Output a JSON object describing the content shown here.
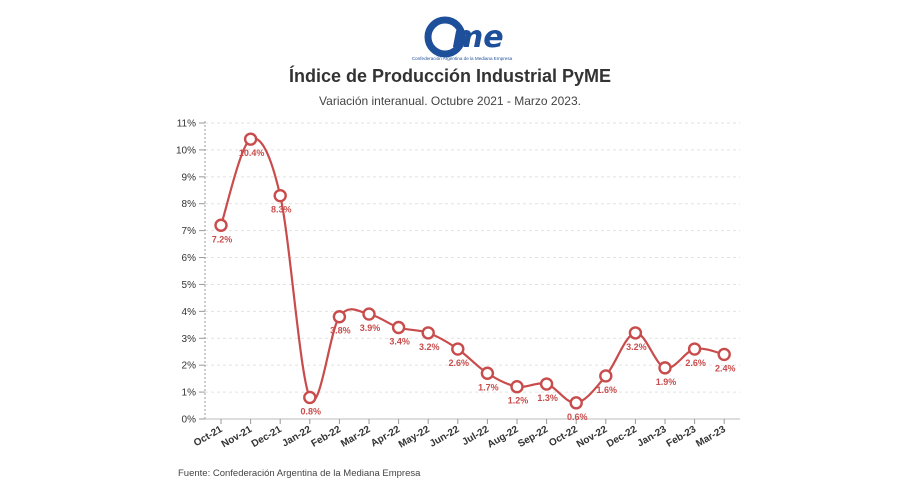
{
  "brand": {
    "logo_text": "came",
    "logo_subtext": "Confederación Argentina de la Mediana Empresa",
    "logo_color": "#1e4f9a"
  },
  "header": {
    "title": "Índice de Producción Industrial PyME",
    "subtitle": "Variación interanual. Octubre 2021 - Marzo 2023."
  },
  "footer": {
    "source": "Fuente: Confederación Argentina de la Mediana Empresa"
  },
  "chart_data": {
    "type": "line",
    "title": "Índice de Producción Industrial PyME",
    "subtitle": "Variación interanual. Octubre 2021 - Marzo 2023.",
    "categories": [
      "Oct-21",
      "Nov-21",
      "Dec-21",
      "Jan-22",
      "Feb-22",
      "Mar-22",
      "Apr-22",
      "May-22",
      "Jun-22",
      "Jul-22",
      "Aug-22",
      "Sep-22",
      "Oct-22",
      "Nov-22",
      "Dec-22",
      "Jan-23",
      "Feb-23",
      "Mar-23"
    ],
    "series": [
      {
        "values": [
          7.2,
          10.4,
          8.3,
          0.8,
          3.8,
          3.9,
          3.4,
          3.2,
          2.6,
          1.7,
          1.2,
          1.3,
          0.6,
          1.6,
          3.2,
          1.9,
          2.6,
          2.4
        ],
        "labels": [
          "7.2%",
          "10.4%",
          "8.3%",
          "0.8%",
          "3.8%",
          "3.9%",
          "3.4%",
          "3.2%",
          "2.6%",
          "1.7%",
          "1.2%",
          "1.3%",
          "0.6%",
          "1.6%",
          "3.2%",
          "1.9%",
          "2.6%",
          "2.4%"
        ]
      }
    ],
    "y_ticks": [
      "0%",
      "1%",
      "2%",
      "3%",
      "4%",
      "5%",
      "6%",
      "7%",
      "8%",
      "9%",
      "10%",
      "11%"
    ],
    "ylim": [
      0,
      11
    ],
    "grid": "horizontal dashed",
    "legend": "none",
    "line_color": "#c94c4c",
    "grid_color": "#e2e2e2"
  }
}
